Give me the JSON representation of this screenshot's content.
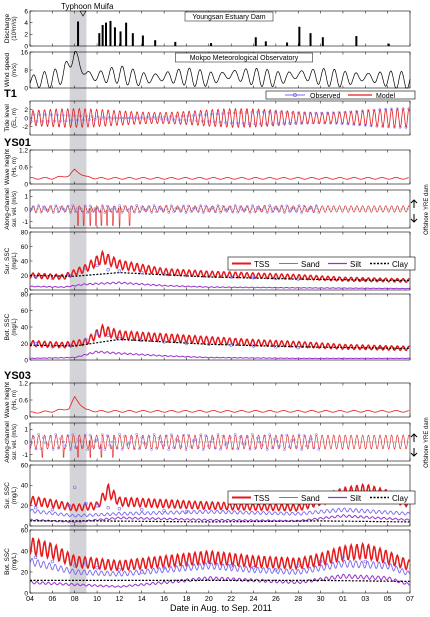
{
  "event": {
    "label": "Typhoon Muifa",
    "start_day": 7.55,
    "end_day": 9.05
  },
  "xaxis": {
    "label": "Date in Aug. to Sep. 2011",
    "ticks": [
      "04",
      "06",
      "08",
      "10",
      "12",
      "14",
      "16",
      "18",
      "20",
      "22",
      "24",
      "26",
      "28",
      "30",
      "01",
      "03",
      "05",
      "07"
    ],
    "range_days": [
      4,
      38
    ]
  },
  "colors": {
    "observed": "#7b68ee",
    "model": "#e41a1c",
    "tss": "#e41a1c",
    "sand": "#7b68ee",
    "silt": "#9932cc",
    "clay": "#000000",
    "event_band": "#b0b0b8"
  },
  "station_labels": {
    "t1": "T1",
    "ys01": "YS01",
    "ys03": "YS03"
  },
  "side_labels": {
    "up": "YRE dam",
    "down": "Offshore"
  },
  "legend_obs_model": {
    "observed": "Observed",
    "model": "Model"
  },
  "legend_ssc_a": {
    "tss": "TSS",
    "sand": "Sand",
    "silt": "Silt",
    "clay": "Clay"
  },
  "legend_ssc_b": {
    "tss": "TSS",
    "sand": "Sand",
    "silt": "Silt",
    "clay": "Clay"
  },
  "chart_data": [
    {
      "id": "discharge",
      "type": "bar",
      "ylabel": "Discharge",
      "yunit": "(10³m³/s)",
      "ylim": [
        0,
        6
      ],
      "yticks": [
        "0",
        "2",
        "4",
        "6"
      ],
      "annotation": "Youngsan Estuary Dam",
      "x": [
        8.3,
        10.2,
        10.5,
        10.8,
        11.2,
        11.6,
        12.1,
        12.6,
        13.2,
        14.1,
        15.2,
        17.0,
        20.2,
        24.2,
        25.1,
        27.0,
        28.1,
        29.1,
        30.2,
        33.2,
        36.1
      ],
      "values": [
        4.2,
        2.2,
        3.6,
        4.0,
        4.3,
        3.2,
        2.5,
        4.0,
        2.2,
        1.8,
        1.0,
        0.7,
        0.5,
        1.5,
        0.8,
        0.6,
        3.3,
        2.2,
        1.5,
        1.7,
        0.4
      ]
    },
    {
      "id": "wind",
      "type": "line",
      "ylabel": "Wind speed",
      "yunit": "(m/s)",
      "ylim": [
        0,
        16
      ],
      "yticks": [
        "0",
        "8",
        "16"
      ],
      "annotation": "Mokpo Meteorological Observatory",
      "x": [
        4,
        6,
        7,
        7.6,
        8.0,
        8.4,
        9.0,
        10,
        12,
        14,
        16,
        18,
        20,
        22,
        24,
        26,
        28,
        30,
        32,
        34,
        36,
        38
      ],
      "values": [
        3,
        4,
        6,
        12,
        15,
        11,
        6,
        5,
        6,
        4,
        5,
        5,
        4,
        6,
        5,
        4,
        6,
        5,
        4,
        5,
        4,
        3
      ]
    },
    {
      "id": "t1-tide",
      "type": "line",
      "station": "T1",
      "ylabel": "Tide level",
      "yunit": "(EL, m)",
      "ylim": [
        -4,
        4
      ],
      "yticks": [
        "-2",
        "0",
        "2"
      ],
      "amplitude_m": 2.2,
      "period_days": 0.5175,
      "series": [
        {
          "name": "Observed",
          "style": "points"
        },
        {
          "name": "Model",
          "style": "line"
        }
      ]
    },
    {
      "id": "ys01-wave",
      "type": "line",
      "station": "YS01",
      "ylabel": "Wave height",
      "yunit": "(Hs, m)",
      "ylim": [
        0,
        1.2
      ],
      "yticks": [
        "0",
        "0.6",
        "1.2"
      ],
      "x": [
        4,
        6,
        7.5,
        8.0,
        8.4,
        9.0,
        10,
        14,
        20,
        26,
        32,
        38
      ],
      "values": [
        0.2,
        0.2,
        0.3,
        0.5,
        0.4,
        0.25,
        0.2,
        0.2,
        0.2,
        0.2,
        0.2,
        0.2
      ]
    },
    {
      "id": "ys01-current",
      "type": "line",
      "station": "YS01",
      "ylabel": "Along-channel",
      "yunit": "sur. vel. (m/s)",
      "ylim": [
        -1.5,
        1.5
      ],
      "yticks": [
        "-1",
        "0",
        "1"
      ],
      "amplitude": 0.25,
      "spike_days": [
        8.3,
        8.8,
        9.4,
        9.9,
        10.4,
        10.9,
        11.4,
        12.0,
        12.9
      ],
      "spike_depth": -1.3,
      "series": [
        {
          "name": "Observed",
          "style": "points"
        },
        {
          "name": "Model",
          "style": "line"
        }
      ]
    },
    {
      "id": "ys01-sur-ssc",
      "type": "line",
      "station": "YS01",
      "ylabel": "Sur. SSC",
      "yunit": "(mg/L)",
      "ylim": [
        0,
        80
      ],
      "yticks": [
        "0",
        "20",
        "40",
        "60",
        "80"
      ],
      "series": [
        {
          "name": "TSS",
          "x": [
            4,
            7,
            9,
            10.5,
            12,
            16,
            20,
            24,
            28,
            32,
            38
          ],
          "values": [
            20,
            18,
            30,
            45,
            35,
            25,
            22,
            20,
            18,
            15,
            13
          ]
        },
        {
          "name": "Silt",
          "x": [
            4,
            7,
            9,
            12,
            16,
            20,
            28,
            38
          ],
          "values": [
            5,
            4,
            8,
            10,
            6,
            4,
            3,
            2
          ]
        },
        {
          "name": "Clay",
          "x": [
            4,
            8,
            12,
            20,
            28,
            38
          ],
          "values": [
            20,
            19,
            24,
            18,
            15,
            13
          ]
        },
        {
          "name": "Observed",
          "x": [
            4.5,
            6,
            7.5,
            9,
            10,
            11,
            12,
            14,
            16,
            18,
            20,
            22,
            24,
            26,
            28
          ],
          "values": [
            18,
            16,
            20,
            30,
            34,
            28,
            26,
            24,
            22,
            20,
            19,
            18,
            17,
            16,
            15
          ]
        }
      ]
    },
    {
      "id": "ys01-bot-ssc",
      "type": "line",
      "station": "YS01",
      "ylabel": "Bot. SSC",
      "yunit": "(mg/L)",
      "ylim": [
        0,
        80
      ],
      "yticks": [
        "0",
        "20",
        "40",
        "60",
        "80"
      ],
      "series": [
        {
          "name": "TSS",
          "x": [
            4,
            7,
            9,
            10.5,
            12,
            16,
            20,
            24,
            28,
            32,
            38
          ],
          "values": [
            20,
            18,
            22,
            36,
            30,
            27,
            24,
            21,
            19,
            16,
            14
          ]
        },
        {
          "name": "Silt",
          "x": [
            4,
            8,
            10,
            12,
            16,
            20,
            28,
            38
          ],
          "values": [
            2,
            3,
            10,
            8,
            5,
            3,
            2,
            2
          ]
        },
        {
          "name": "Clay",
          "x": [
            4,
            8,
            12,
            20,
            28,
            38
          ],
          "values": [
            18,
            17,
            25,
            19,
            16,
            14
          ]
        },
        {
          "name": "Observed",
          "x": [
            4.5,
            6,
            7.5,
            9,
            10,
            11,
            12,
            14,
            16,
            18,
            20,
            22,
            24,
            26,
            28
          ],
          "values": [
            20,
            16,
            18,
            25,
            32,
            30,
            26,
            24,
            22,
            20,
            19,
            18,
            17,
            16,
            15
          ]
        }
      ]
    },
    {
      "id": "ys03-wave",
      "type": "line",
      "station": "YS03",
      "ylabel": "Wave height",
      "yunit": "(Hs, m)",
      "ylim": [
        0,
        1.2
      ],
      "yticks": [
        "0",
        "0.6",
        "1.2"
      ],
      "x": [
        4,
        6,
        7.5,
        8.0,
        8.4,
        9.0,
        10,
        14,
        20,
        26,
        32,
        38
      ],
      "values": [
        0.15,
        0.2,
        0.3,
        0.7,
        0.5,
        0.25,
        0.2,
        0.2,
        0.2,
        0.2,
        0.2,
        0.2
      ]
    },
    {
      "id": "ys03-current",
      "type": "line",
      "station": "YS03",
      "ylabel": "Along-channel",
      "yunit": "sur. vel. (m/s)",
      "ylim": [
        -1.5,
        1.5
      ],
      "yticks": [
        "-1",
        "0",
        "1"
      ],
      "amplitude": 0.55,
      "spike_days": [
        5.1,
        7.0,
        8.3,
        9.4,
        10.4,
        11.4
      ],
      "spike_depth": -1.2,
      "series": [
        {
          "name": "Observed",
          "style": "points"
        },
        {
          "name": "Model",
          "style": "line"
        }
      ]
    },
    {
      "id": "ys03-sur-ssc",
      "type": "line",
      "station": "YS03",
      "ylabel": "Sur. SSC",
      "yunit": "(mg/L)",
      "ylim": [
        0,
        60
      ],
      "yticks": [
        "0",
        "20",
        "40",
        "60"
      ],
      "series": [
        {
          "name": "TSS",
          "x": [
            4,
            6,
            8,
            10,
            11,
            12,
            16,
            20,
            24,
            28,
            30,
            32,
            34,
            36,
            38
          ],
          "values": [
            25,
            22,
            18,
            20,
            35,
            24,
            22,
            20,
            19,
            18,
            25,
            32,
            35,
            30,
            22
          ]
        },
        {
          "name": "Sand",
          "x": [
            4,
            8,
            12,
            20,
            28,
            32,
            38
          ],
          "values": [
            15,
            10,
            12,
            14,
            12,
            16,
            12
          ]
        },
        {
          "name": "Silt",
          "x": [
            4,
            8,
            12,
            20,
            28,
            32,
            38
          ],
          "values": [
            6,
            4,
            8,
            6,
            5,
            10,
            6
          ]
        },
        {
          "name": "Clay",
          "x": [
            4,
            10,
            20,
            30,
            38
          ],
          "values": [
            5,
            5,
            4,
            5,
            4
          ]
        },
        {
          "name": "Observed",
          "x": [
            4.5,
            6,
            7.5,
            8,
            9,
            10,
            11,
            12,
            14,
            16,
            18
          ],
          "values": [
            18,
            16,
            20,
            38,
            22,
            20,
            18,
            17,
            16,
            15,
            14
          ]
        }
      ]
    },
    {
      "id": "ys03-bot-ssc",
      "type": "line",
      "station": "YS03",
      "ylabel": "Bot. SSC",
      "yunit": "(mg/L)",
      "ylim": [
        0,
        60
      ],
      "yticks": [
        "0",
        "20",
        "40",
        "60"
      ],
      "series": [
        {
          "name": "TSS",
          "x": [
            4,
            6,
            8,
            10,
            12,
            16,
            20,
            24,
            28,
            30,
            32,
            34,
            36,
            38
          ],
          "values": [
            45,
            40,
            30,
            28,
            26,
            30,
            34,
            30,
            28,
            32,
            38,
            40,
            34,
            26
          ]
        },
        {
          "name": "Sand",
          "x": [
            4,
            8,
            12,
            16,
            20,
            24,
            28,
            32,
            36,
            38
          ],
          "values": [
            30,
            20,
            18,
            22,
            26,
            22,
            20,
            28,
            26,
            18
          ]
        },
        {
          "name": "Silt",
          "x": [
            4,
            8,
            12,
            16,
            20,
            24,
            28,
            32,
            36,
            38
          ],
          "values": [
            10,
            8,
            6,
            10,
            14,
            12,
            10,
            16,
            14,
            8
          ]
        },
        {
          "name": "Clay",
          "x": [
            4,
            10,
            20,
            30,
            38
          ],
          "values": [
            12,
            12,
            12,
            12,
            11
          ]
        },
        {
          "name": "Observed",
          "x": [
            4.5,
            6,
            8,
            9,
            10,
            12,
            14,
            16,
            18,
            20,
            22,
            24,
            26,
            28,
            30,
            32,
            34
          ],
          "values": [
            34,
            30,
            26,
            28,
            24,
            22,
            20,
            24,
            28,
            30,
            26,
            24,
            22,
            26,
            30,
            34,
            30
          ]
        }
      ]
    }
  ]
}
